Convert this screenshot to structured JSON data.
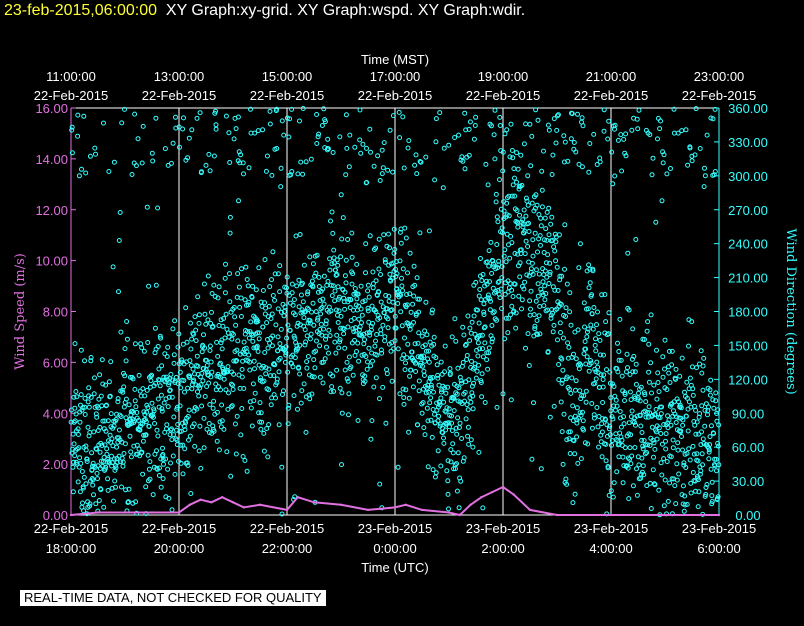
{
  "header": {
    "timestamp": "23-feb-2015,06:00:00",
    "title": "XY Graph:xy-grid.  XY Graph:wspd.  XY Graph:wdir."
  },
  "footer": {
    "quality_note": "REAL-TIME DATA, NOT CHECKED FOR QUALITY"
  },
  "chart_data": {
    "type": "scatter",
    "top_axis_label": "Time (MST)",
    "top_ticks": [
      {
        "time": "11:00:00",
        "date": "22-Feb-2015"
      },
      {
        "time": "13:00:00",
        "date": "22-Feb-2015"
      },
      {
        "time": "15:00:00",
        "date": "22-Feb-2015"
      },
      {
        "time": "17:00:00",
        "date": "22-Feb-2015"
      },
      {
        "time": "19:00:00",
        "date": "22-Feb-2015"
      },
      {
        "time": "21:00:00",
        "date": "22-Feb-2015"
      },
      {
        "time": "23:00:00",
        "date": "22-Feb-2015"
      }
    ],
    "xlabel": "Time (UTC)",
    "bottom_ticks": [
      {
        "date": "22-Feb-2015",
        "time": "18:00:00"
      },
      {
        "date": "22-Feb-2015",
        "time": "20:00:00"
      },
      {
        "date": "22-Feb-2015",
        "time": "22:00:00"
      },
      {
        "date": "23-Feb-2015",
        "time": "0:00:00"
      },
      {
        "date": "23-Feb-2015",
        "time": "2:00:00"
      },
      {
        "date": "23-Feb-2015",
        "time": "4:00:00"
      },
      {
        "date": "23-Feb-2015",
        "time": "6:00:00"
      }
    ],
    "xlim_utc_hours": [
      18,
      30
    ],
    "ylabel_left": "Wind Speed (m/s)",
    "ylim_left": [
      0,
      16
    ],
    "yticks_left": [
      "0.00",
      "2.00",
      "4.00",
      "6.00",
      "8.00",
      "10.00",
      "12.00",
      "14.00",
      "16.00"
    ],
    "ylabel_right": "Wind Direction (degrees)",
    "ylim_right": [
      0,
      360
    ],
    "yticks_right": [
      "0.00",
      "30.00",
      "60.00",
      "90.00",
      "120.00",
      "150.00",
      "180.00",
      "210.00",
      "240.00",
      "270.00",
      "300.00",
      "330.00",
      "360.00"
    ],
    "grid": "vertical lines at labeled times",
    "colors": {
      "wspd": "#e070e0",
      "wdir": "#33ffff",
      "grid": "#ffffff"
    },
    "wspd_series": {
      "name": "wspd",
      "axis": "left",
      "x_utc_hours": [
        18.0,
        18.5,
        19.0,
        19.5,
        20.0,
        20.2,
        20.4,
        20.6,
        20.8,
        21.0,
        21.2,
        21.5,
        22.0,
        22.2,
        22.5,
        23.0,
        23.5,
        24.0,
        24.2,
        24.5,
        25.0,
        25.2,
        25.4,
        25.6,
        25.8,
        26.0,
        26.2,
        26.5,
        27.0,
        28.0,
        29.0,
        30.0
      ],
      "values": [
        0.0,
        0.1,
        0.1,
        0.1,
        0.1,
        0.4,
        0.6,
        0.5,
        0.7,
        0.5,
        0.3,
        0.4,
        0.2,
        0.7,
        0.5,
        0.4,
        0.2,
        0.3,
        0.4,
        0.2,
        0.1,
        0.0,
        0.4,
        0.7,
        0.9,
        1.1,
        0.8,
        0.2,
        0.0,
        0.0,
        0.0,
        0.0
      ]
    },
    "wdir_series": {
      "name": "wdir",
      "axis": "right",
      "x_utc_hours": [
        18.0,
        18.5,
        19.0,
        19.5,
        20.0,
        20.5,
        21.0,
        21.5,
        22.0,
        22.5,
        23.0,
        23.5,
        24.0,
        24.3,
        24.6,
        25.0,
        25.3,
        25.6,
        26.0,
        26.3,
        26.6,
        27.0,
        27.3,
        27.6,
        28.0,
        28.5,
        29.0,
        29.5,
        30.0
      ],
      "center_deg": [
        60,
        60,
        70,
        90,
        100,
        130,
        140,
        150,
        150,
        170,
        180,
        160,
        190,
        170,
        130,
        80,
        110,
        180,
        220,
        240,
        230,
        200,
        80,
        160,
        90,
        90,
        80,
        70,
        60
      ],
      "spread_deg": [
        45,
        45,
        45,
        50,
        55,
        55,
        55,
        55,
        50,
        45,
        45,
        45,
        50,
        50,
        50,
        45,
        50,
        55,
        55,
        50,
        50,
        55,
        60,
        60,
        60,
        55,
        55,
        50,
        45
      ]
    }
  }
}
